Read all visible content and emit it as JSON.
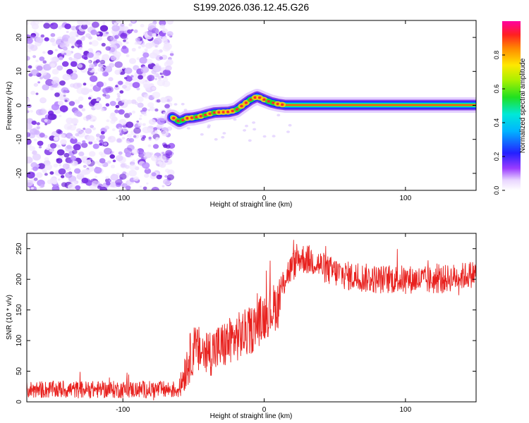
{
  "title": "S199.2026.036.12.45.G26",
  "colors": {
    "snr_line": "#e8211e",
    "scatter_purple": "#7a2ee6",
    "track_colors": [
      "#1a2cff",
      "#00d7ff",
      "#22e022",
      "#ffd000",
      "#ff2a2a"
    ]
  },
  "chart_data": [
    {
      "type": "heatmap",
      "title": "S199.2026.036.12.45.G26",
      "xlabel": "Height of straight line (km)",
      "ylabel": "Frequency (Hz)",
      "xlim": [
        -168,
        150
      ],
      "ylim": [
        -25,
        25
      ],
      "xticks": [
        -100,
        0,
        100
      ],
      "yticks": [
        -20,
        -10,
        0,
        10,
        20
      ],
      "noise_region_x": [
        -168,
        -65
      ],
      "ridge": {
        "x": [
          -65,
          -60,
          -55,
          -50,
          -45,
          -40,
          -35,
          -30,
          -25,
          -20,
          -15,
          -10,
          -5,
          0,
          5,
          10,
          15,
          150
        ],
        "y": [
          -3.5,
          -4.8,
          -3.8,
          -3.6,
          -3.2,
          -2.6,
          -2.1,
          -2.0,
          -1.9,
          -1.4,
          0.1,
          1.6,
          2.6,
          1.7,
          0.9,
          0.4,
          0.1,
          0.1
        ]
      },
      "colorbar": {
        "label": "Normalized spectral amplitude",
        "ticks": [
          0.0,
          0.2,
          0.4,
          0.6,
          0.8
        ],
        "range": [
          0,
          1
        ]
      }
    },
    {
      "type": "line",
      "xlabel": "Height of straight line (km)",
      "ylabel": "SNR (10 * v/v)",
      "xlim": [
        -168,
        150
      ],
      "ylim": [
        0,
        275
      ],
      "xticks": [
        -100,
        0,
        100
      ],
      "yticks": [
        0,
        50,
        100,
        150,
        200,
        250
      ],
      "series": [
        {
          "name": "SNR",
          "trend": {
            "x": [
              -168,
              -60,
              -55,
              -50,
              -40,
              -30,
              -20,
              -10,
              0,
              10,
              15,
              25,
              35,
              45,
              60,
              80,
              100,
              120,
              140,
              150
            ],
            "y": [
              20,
              20,
              60,
              85,
              80,
              90,
              105,
              115,
              140,
              160,
              205,
              235,
              230,
              215,
              205,
              200,
              200,
              198,
              205,
              210
            ]
          },
          "noise_amplitude": {
            "x": [
              -168,
              -60,
              -55,
              10,
              15,
              150
            ],
            "y": [
              14,
              14,
              40,
              40,
              25,
              22
            ]
          }
        }
      ]
    }
  ]
}
